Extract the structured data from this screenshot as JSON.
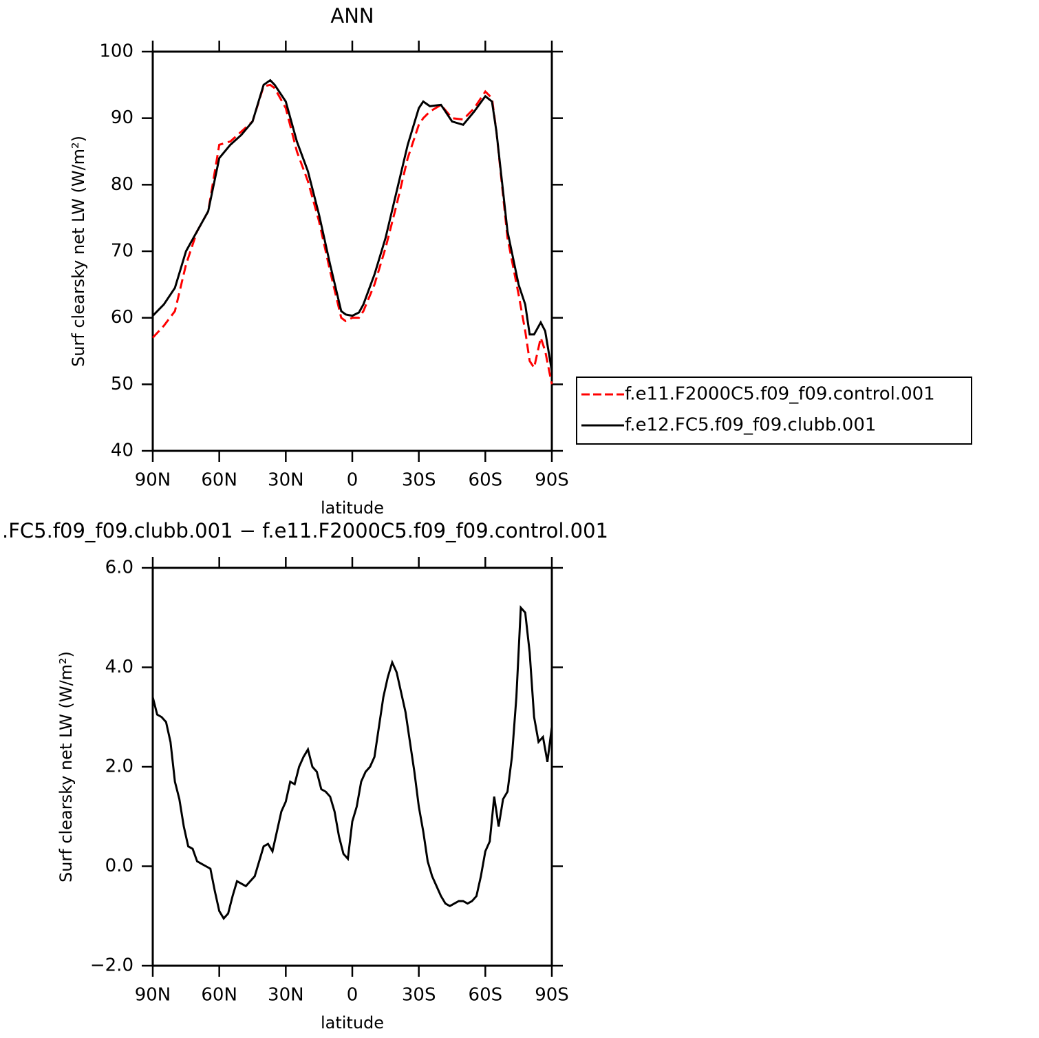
{
  "chart_data": [
    {
      "type": "line",
      "title": "ANN",
      "xlabel": "latitude",
      "ylabel": "Surf clearsky net LW (W/m²)",
      "x": [
        90,
        85,
        80,
        75,
        70,
        65,
        60,
        55,
        50,
        45,
        40,
        37,
        35,
        30,
        25,
        20,
        15,
        10,
        5,
        3,
        0,
        -3,
        -5,
        -10,
        -15,
        -20,
        -25,
        -30,
        -32,
        -35,
        -40,
        -45,
        -50,
        -55,
        -60,
        -63,
        -65,
        -70,
        -75,
        -78,
        -80,
        -82,
        -85,
        -87,
        -90
      ],
      "series": [
        {
          "name": "f.e11.F2000C5.f09_f09.control.001",
          "color": "#ff0000",
          "linestyle": "dashed",
          "values": [
            57,
            58.8,
            61,
            68,
            73,
            76,
            86,
            86.5,
            88,
            89.5,
            94.8,
            95,
            94.5,
            91.5,
            85,
            80.5,
            74.5,
            67,
            60,
            59.5,
            60,
            60,
            61,
            65,
            70.5,
            77,
            84,
            89,
            90,
            91,
            92,
            90,
            89.8,
            91.5,
            94,
            93,
            88,
            72,
            63.5,
            58,
            53.5,
            52.5,
            57,
            55,
            50
          ]
        },
        {
          "name": "f.e12.FC5.f09_f09.clubb.001",
          "color": "#000000",
          "linestyle": "solid",
          "values": [
            60.3,
            62,
            64.5,
            70,
            73,
            76,
            84,
            86,
            87.5,
            89.5,
            95,
            95.7,
            95,
            92.5,
            86.5,
            82,
            75.5,
            68,
            61,
            60.5,
            60.3,
            60.8,
            62,
            66.5,
            72,
            79,
            86,
            91.5,
            92.5,
            91.8,
            92,
            89.5,
            89,
            91,
            93.3,
            92.5,
            88,
            73,
            65,
            62,
            57.5,
            57.5,
            59.3,
            58,
            52
          ]
        }
      ],
      "xlim": [
        90,
        -90
      ],
      "xticks": [
        {
          "value": 90,
          "label": "90N"
        },
        {
          "value": 60,
          "label": "60N"
        },
        {
          "value": 30,
          "label": "30N"
        },
        0,
        {
          "value": -30,
          "label": "30S"
        },
        {
          "value": -60,
          "label": "60S"
        },
        {
          "value": -90,
          "label": "90S"
        }
      ],
      "ylim": [
        40,
        100
      ],
      "yticks": [
        40,
        50,
        60,
        70,
        80,
        90,
        100
      ],
      "legend": "outside-right"
    },
    {
      "type": "line",
      "title": ".FC5.f09_f09.clubb.001 − f.e11.F2000C5.f09_f09.control.001",
      "xlabel": "latitude",
      "ylabel": "Surf clearsky net LW (W/m²)",
      "x": [
        90,
        88,
        86,
        84,
        82,
        80,
        78,
        76,
        74,
        72,
        70,
        68,
        66,
        64,
        62,
        60,
        58,
        56,
        54,
        52,
        50,
        48,
        46,
        44,
        42,
        40,
        38,
        36,
        34,
        32,
        30,
        28,
        26,
        24,
        22,
        20,
        18,
        16,
        14,
        12,
        10,
        8,
        6,
        4,
        2,
        0,
        -2,
        -4,
        -6,
        -8,
        -10,
        -12,
        -14,
        -16,
        -18,
        -20,
        -22,
        -24,
        -26,
        -28,
        -30,
        -32,
        -34,
        -36,
        -38,
        -40,
        -42,
        -44,
        -46,
        -48,
        -50,
        -52,
        -54,
        -56,
        -58,
        -60,
        -62,
        -64,
        -66,
        -68,
        -70,
        -72,
        -74,
        -76,
        -78,
        -80,
        -82,
        -84,
        -86,
        -88,
        -90
      ],
      "values": [
        3.4,
        3.05,
        3.0,
        2.9,
        2.5,
        1.7,
        1.35,
        0.8,
        0.4,
        0.35,
        0.1,
        0.05,
        0.0,
        -0.05,
        -0.5,
        -0.9,
        -1.05,
        -0.95,
        -0.6,
        -0.3,
        -0.35,
        -0.4,
        -0.3,
        -0.2,
        0.1,
        0.4,
        0.45,
        0.3,
        0.7,
        1.1,
        1.3,
        1.7,
        1.65,
        2.0,
        2.2,
        2.35,
        2.0,
        1.9,
        1.55,
        1.5,
        1.4,
        1.1,
        0.6,
        0.25,
        0.15,
        0.9,
        1.2,
        1.7,
        1.9,
        2.0,
        2.2,
        2.8,
        3.4,
        3.8,
        4.1,
        3.9,
        3.5,
        3.1,
        2.5,
        1.9,
        1.2,
        0.7,
        0.1,
        -0.2,
        -0.4,
        -0.6,
        -0.75,
        -0.8,
        -0.75,
        -0.7,
        -0.7,
        -0.75,
        -0.7,
        -0.6,
        -0.2,
        0.3,
        0.5,
        1.4,
        0.8,
        1.35,
        1.5,
        2.2,
        3.4,
        5.2,
        5.1,
        4.3,
        3.0,
        2.5,
        2.6,
        2.1,
        2.8
      ],
      "color": "#000000",
      "xlim": [
        90,
        -90
      ],
      "xticks": [
        {
          "value": 90,
          "label": "90N"
        },
        {
          "value": 60,
          "label": "60N"
        },
        {
          "value": 30,
          "label": "30N"
        },
        0,
        {
          "value": -30,
          "label": "30S"
        },
        {
          "value": -60,
          "label": "60S"
        },
        {
          "value": -90,
          "label": "90S"
        }
      ],
      "ylim": [
        -2,
        6
      ],
      "yticks": [
        {
          "value": -2,
          "label": "−2.0"
        },
        {
          "value": 0,
          "label": "0.0"
        },
        {
          "value": 2,
          "label": "2.0"
        },
        {
          "value": 4,
          "label": "4.0"
        },
        {
          "value": 6,
          "label": "6.0"
        }
      ]
    }
  ]
}
